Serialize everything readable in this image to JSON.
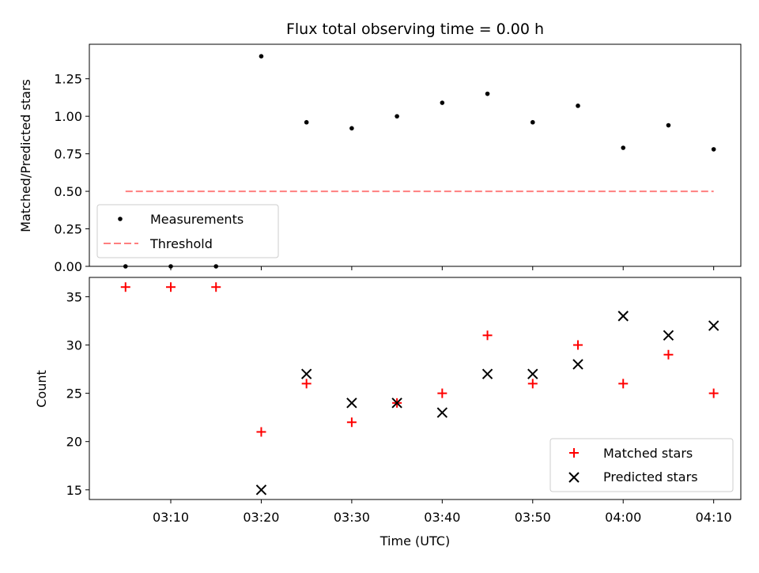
{
  "chart_data": [
    {
      "type": "scatter",
      "title": "Flux total observing time = 0.00 h",
      "ylabel": "Matched/Predicted stars",
      "xlim": [
        "03:01",
        "04:13"
      ],
      "ylim": [
        0,
        1.48
      ],
      "yticks": [
        "0.00",
        "0.25",
        "0.50",
        "0.75",
        "1.00",
        "1.25"
      ],
      "legend_position": "lower-left",
      "series": [
        {
          "name": "Measurements",
          "color": "#000000",
          "marker": "dot",
          "points": [
            {
              "x": "03:05",
              "y": 0.0
            },
            {
              "x": "03:10",
              "y": 0.0
            },
            {
              "x": "03:15",
              "y": 0.0
            },
            {
              "x": "03:20",
              "y": 1.4
            },
            {
              "x": "03:25",
              "y": 0.96
            },
            {
              "x": "03:30",
              "y": 0.92
            },
            {
              "x": "03:35",
              "y": 1.0
            },
            {
              "x": "03:40",
              "y": 1.09
            },
            {
              "x": "03:45",
              "y": 1.15
            },
            {
              "x": "03:50",
              "y": 0.96
            },
            {
              "x": "03:55",
              "y": 1.07
            },
            {
              "x": "04:00",
              "y": 0.79
            },
            {
              "x": "04:05",
              "y": 0.94
            },
            {
              "x": "04:10",
              "y": 0.78
            }
          ]
        },
        {
          "name": "Threshold",
          "color": "#ff7f7f",
          "style": "dashed-line",
          "points": [
            {
              "x": "03:05",
              "y": 0.5
            },
            {
              "x": "04:10",
              "y": 0.5
            }
          ]
        }
      ]
    },
    {
      "type": "scatter",
      "xlabel": "Time (UTC)",
      "ylabel": "Count",
      "xlim": [
        "03:01",
        "04:13"
      ],
      "ylim": [
        14,
        37
      ],
      "xticks": [
        "03:10",
        "03:20",
        "03:30",
        "03:40",
        "03:50",
        "04:00",
        "04:10"
      ],
      "yticks": [
        "15",
        "20",
        "25",
        "30",
        "35"
      ],
      "legend_position": "lower-right",
      "series": [
        {
          "name": "Matched stars",
          "color": "#ff0000",
          "marker": "plus",
          "points": [
            {
              "x": "03:05",
              "y": 36
            },
            {
              "x": "03:10",
              "y": 36
            },
            {
              "x": "03:15",
              "y": 36
            },
            {
              "x": "03:20",
              "y": 21
            },
            {
              "x": "03:25",
              "y": 26
            },
            {
              "x": "03:30",
              "y": 22
            },
            {
              "x": "03:35",
              "y": 24
            },
            {
              "x": "03:40",
              "y": 25
            },
            {
              "x": "03:45",
              "y": 31
            },
            {
              "x": "03:50",
              "y": 26
            },
            {
              "x": "03:55",
              "y": 30
            },
            {
              "x": "04:00",
              "y": 26
            },
            {
              "x": "04:05",
              "y": 29
            },
            {
              "x": "04:10",
              "y": 25
            }
          ]
        },
        {
          "name": "Predicted stars",
          "color": "#000000",
          "marker": "x",
          "points": [
            {
              "x": "03:20",
              "y": 15
            },
            {
              "x": "03:25",
              "y": 27
            },
            {
              "x": "03:30",
              "y": 24
            },
            {
              "x": "03:35",
              "y": 24
            },
            {
              "x": "03:40",
              "y": 23
            },
            {
              "x": "03:45",
              "y": 27
            },
            {
              "x": "03:50",
              "y": 27
            },
            {
              "x": "03:55",
              "y": 28
            },
            {
              "x": "04:00",
              "y": 33
            },
            {
              "x": "04:05",
              "y": 31
            },
            {
              "x": "04:10",
              "y": 32
            }
          ]
        }
      ]
    }
  ]
}
